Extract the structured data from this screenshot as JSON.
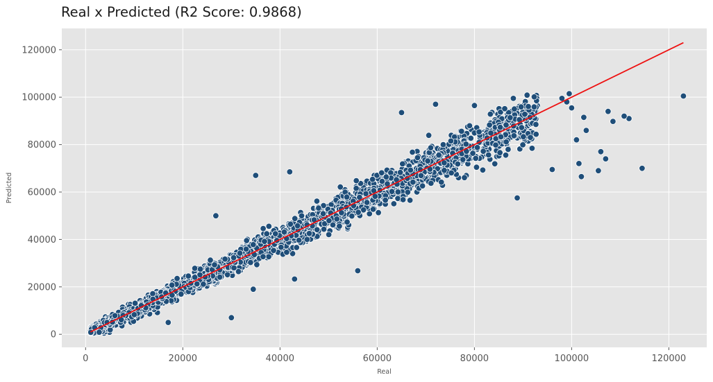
{
  "chart_data": {
    "type": "scatter",
    "title": "Real x Predicted (R2 Score: 0.9868)",
    "xlabel": "Real",
    "ylabel": "Predicted",
    "xlim": [
      -4900,
      127800
    ],
    "ylim": [
      -5500,
      129000
    ],
    "x_ticks": [
      0,
      20000,
      40000,
      60000,
      80000,
      100000,
      120000
    ],
    "y_ticks": [
      0,
      20000,
      40000,
      60000,
      80000,
      100000,
      120000
    ],
    "grid": true,
    "background": "#e5e5e5",
    "grid_color": "#ffffff",
    "point_color": "#1f4e79",
    "point_edge_color": "#ffffff",
    "line_color": "#ee1111",
    "reference_line": {
      "x": [
        1000,
        123000
      ],
      "y": [
        1000,
        123000
      ]
    },
    "bulk_trend": {
      "x_range": [
        1000,
        93000
      ],
      "spread_at_low": 2000,
      "spread_at_high": 9000
    },
    "outliers": [
      {
        "x": 123000,
        "y": 100500
      },
      {
        "x": 114500,
        "y": 70000
      },
      {
        "x": 111800,
        "y": 91000
      },
      {
        "x": 110800,
        "y": 92000
      },
      {
        "x": 108500,
        "y": 89800
      },
      {
        "x": 107500,
        "y": 94000
      },
      {
        "x": 107000,
        "y": 74000
      },
      {
        "x": 106000,
        "y": 77000
      },
      {
        "x": 105500,
        "y": 69000
      },
      {
        "x": 102000,
        "y": 66500
      },
      {
        "x": 103000,
        "y": 86000
      },
      {
        "x": 102500,
        "y": 91500
      },
      {
        "x": 101500,
        "y": 72000
      },
      {
        "x": 101000,
        "y": 82000
      },
      {
        "x": 99500,
        "y": 101500
      },
      {
        "x": 99000,
        "y": 98000
      },
      {
        "x": 98000,
        "y": 99500
      },
      {
        "x": 100000,
        "y": 95500
      },
      {
        "x": 96000,
        "y": 69500
      },
      {
        "x": 88000,
        "y": 99500
      },
      {
        "x": 72000,
        "y": 97000
      },
      {
        "x": 65000,
        "y": 93500
      },
      {
        "x": 80000,
        "y": 96500
      },
      {
        "x": 56000,
        "y": 26800
      },
      {
        "x": 43000,
        "y": 23300
      },
      {
        "x": 35000,
        "y": 67000
      },
      {
        "x": 42000,
        "y": 68500
      },
      {
        "x": 26800,
        "y": 50000
      },
      {
        "x": 34500,
        "y": 19000
      },
      {
        "x": 30000,
        "y": 7000
      },
      {
        "x": 17000,
        "y": 5000
      },
      {
        "x": 88800,
        "y": 57500
      }
    ]
  }
}
